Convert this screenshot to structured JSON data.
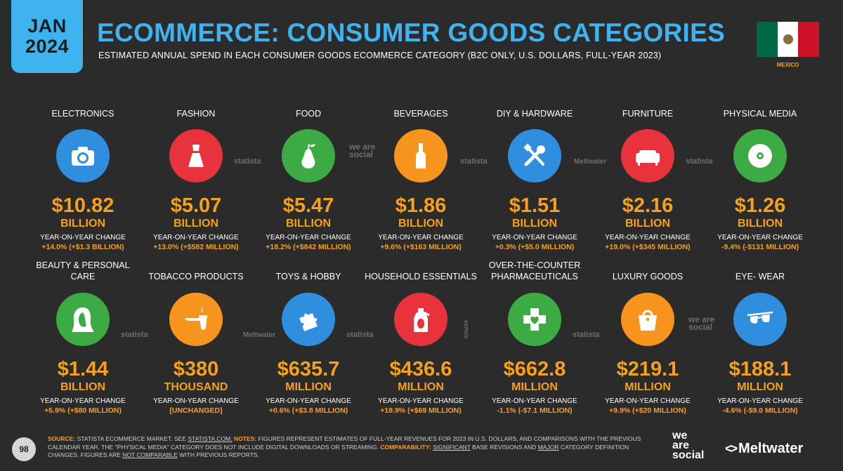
{
  "header": {
    "month": "JAN",
    "year": "2024",
    "title": "ECOMMERCE: CONSUMER GOODS CATEGORIES",
    "subtitle": "ESTIMATED ANNUAL SPEND IN EACH CONSUMER GOODS ECOMMERCE CATEGORY (B2C ONLY, U.S. DOLLARS, FULL-YEAR 2023)",
    "country": "MEXICO"
  },
  "yoy_label": "YEAR-ON-YEAR CHANGE",
  "categories": [
    {
      "label": "ELECTRONICS",
      "value": "$10.82",
      "unit": "BILLION",
      "change": "+14.0% (+$1.3 BILLION)",
      "icon": "camera-icon",
      "color": "#2f8fde"
    },
    {
      "label": "FASHION",
      "value": "$5.07",
      "unit": "BILLION",
      "change": "+13.0% (+$582 MILLION)",
      "icon": "dress-icon",
      "color": "#e8323c"
    },
    {
      "label": "FOOD",
      "value": "$5.47",
      "unit": "BILLION",
      "change": "+18.2% (+$842 MILLION)",
      "icon": "pear-icon",
      "color": "#3cab44"
    },
    {
      "label": "BEVERAGES",
      "value": "$1.86",
      "unit": "BILLION",
      "change": "+9.6% (+$163 MILLION)",
      "icon": "bottle-icon",
      "color": "#f7941d"
    },
    {
      "label": "DIY & HARDWARE",
      "value": "$1.51",
      "unit": "BILLION",
      "change": "+0.3% (+$5.0 MILLION)",
      "icon": "tools-icon",
      "color": "#2f8fde"
    },
    {
      "label": "FURNITURE",
      "value": "$2.16",
      "unit": "BILLION",
      "change": "+19.0% (+$345 MILLION)",
      "icon": "sofa-icon",
      "color": "#e8323c"
    },
    {
      "label": "PHYSICAL MEDIA",
      "value": "$1.26",
      "unit": "BILLION",
      "change": "-9.4% (-$131 MILLION)",
      "icon": "disc-icon",
      "color": "#3cab44"
    },
    {
      "label": "BEAUTY & PERSONAL CARE",
      "value": "$1.44",
      "unit": "BILLION",
      "change": "+5.9% (+$80 MILLION)",
      "icon": "face-icon",
      "color": "#3cab44"
    },
    {
      "label": "TOBACCO PRODUCTS",
      "value": "$380",
      "unit": "THOUSAND",
      "change": "[UNCHANGED]",
      "icon": "pipe-icon",
      "color": "#f7941d"
    },
    {
      "label": "TOYS & HOBBY",
      "value": "$635.7",
      "unit": "MILLION",
      "change": "+0.6% (+$3.8 MILLION)",
      "icon": "puzzle-icon",
      "color": "#2f8fde"
    },
    {
      "label": "HOUSEHOLD ESSENTIALS",
      "value": "$436.6",
      "unit": "MILLION",
      "change": "+18.9% (+$69 MILLION)",
      "icon": "detergent-icon",
      "color": "#e8323c"
    },
    {
      "label": "OVER-THE-COUNTER PHARMACEUTICALS",
      "value": "$662.8",
      "unit": "MILLION",
      "change": "-1.1% (-$7.1 MILLION)",
      "icon": "medical-cross-icon",
      "color": "#3cab44"
    },
    {
      "label": "LUXURY GOODS",
      "value": "$219.1",
      "unit": "MILLION",
      "change": "+9.9% (+$20 MILLION)",
      "icon": "handbag-icon",
      "color": "#f7941d"
    },
    {
      "label": "EYE- WEAR",
      "value": "$188.1",
      "unit": "MILLION",
      "change": "-4.6% (-$9.0 MILLION)",
      "icon": "glasses-icon",
      "color": "#2f8fde"
    }
  ],
  "watermarks": {
    "statista": "statista",
    "wearesocial": "we are social",
    "meltwater": "Meltwater",
    "kepios": "KEPIOS"
  },
  "footer": {
    "page": "98",
    "source_label": "SOURCE:",
    "source_text": "STATISTA ECOMMERCE MARKET. SEE",
    "source_link": "STATISTA.COM.",
    "notes_label": "NOTES:",
    "notes_text": "FIGURES REPRESENT ESTIMATES OF FULL-YEAR REVENUES FOR 2023 IN U.S. DOLLARS, AND COMPARISONS WITH THE PREVIOUS CALENDAR YEAR. THE \"PHYSICAL MEDIA\" CATEGORY DOES NOT INCLUDE DIGITAL DOWNLOADS OR STREAMING.",
    "comparability_label": "COMPARABILITY:",
    "significant": "SIGNIFICANT",
    "comp_text_1": "BASE REVISIONS AND",
    "major": "MAJOR",
    "comp_text_2": "CATEGORY DEFINITION CHANGES. FIGURES ARE",
    "not_comparable": "NOT COMPARABLE",
    "comp_text_3": "WITH PREVIOUS REPORTS."
  },
  "logos": {
    "we": "we",
    "are": "are",
    "social": "social",
    "meltwater": "Meltwater"
  }
}
